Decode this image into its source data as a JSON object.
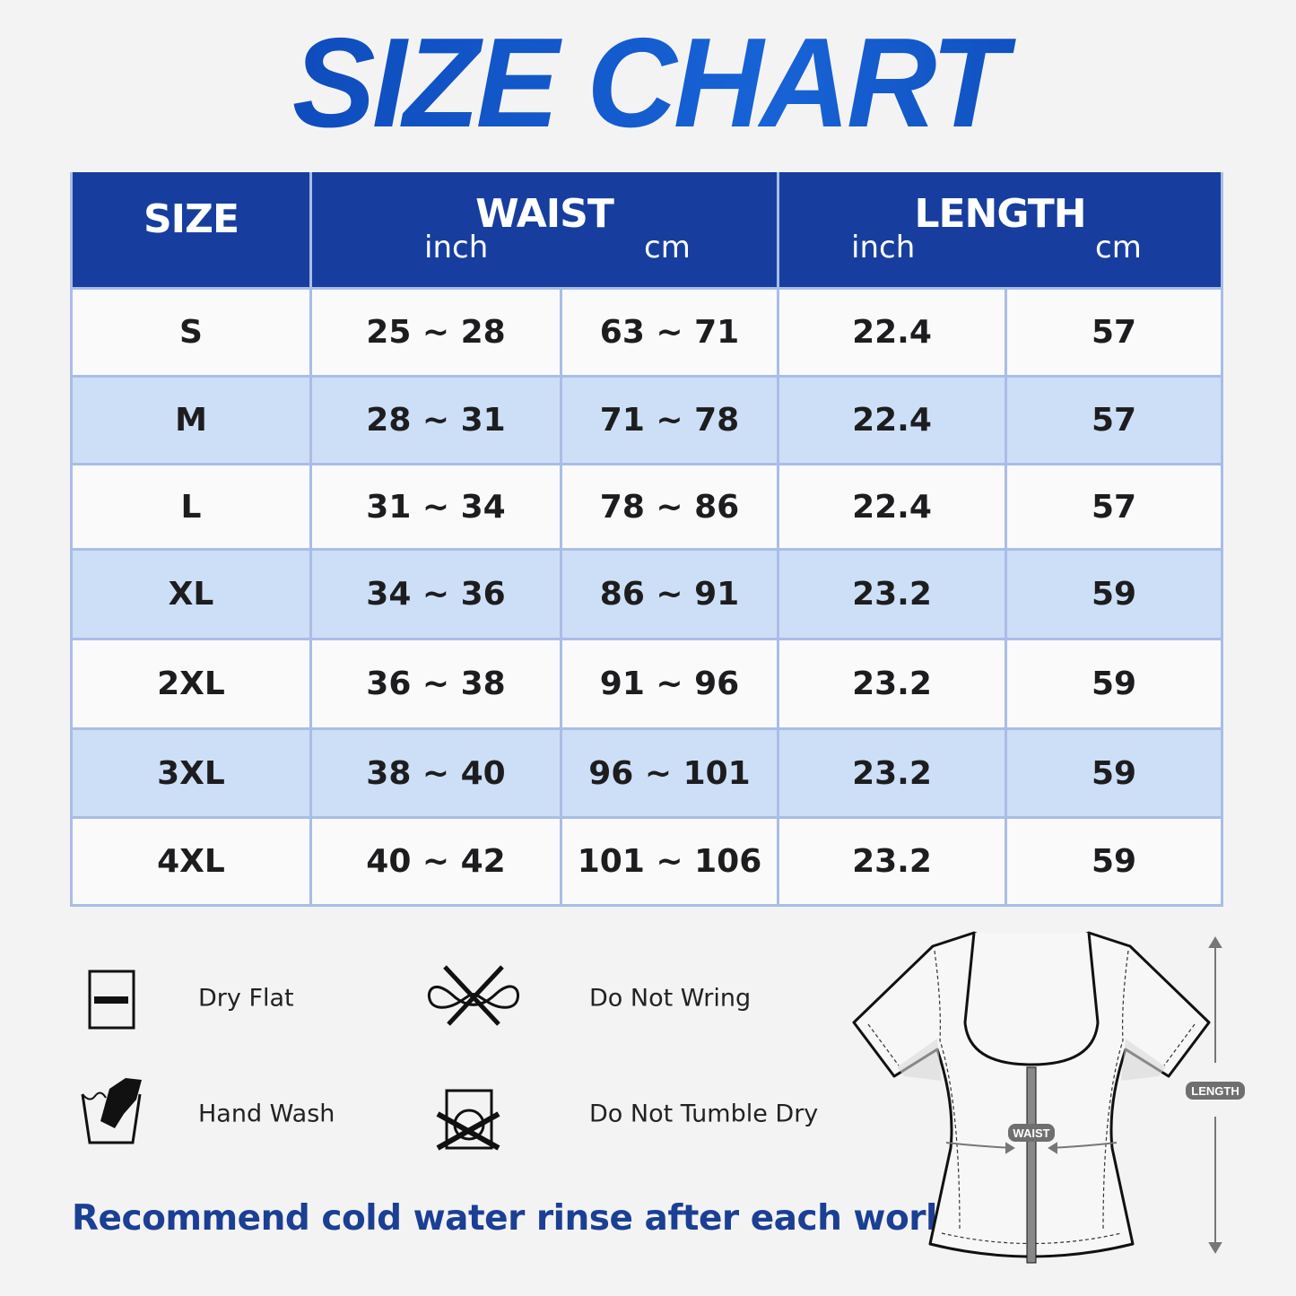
{
  "title": "SIZE CHART",
  "table": {
    "headers": {
      "size": "SIZE",
      "waist": "WAIST",
      "length": "LENGTH",
      "inch": "inch",
      "cm": "cm"
    },
    "rows": [
      {
        "size": "S",
        "waist_inch": "25 ~ 28",
        "waist_cm": "63 ~ 71",
        "length_inch": "22.4",
        "length_cm": "57"
      },
      {
        "size": "M",
        "waist_inch": "28 ~ 31",
        "waist_cm": "71 ~ 78",
        "length_inch": "22.4",
        "length_cm": "57"
      },
      {
        "size": "L",
        "waist_inch": "31 ~ 34",
        "waist_cm": "78 ~ 86",
        "length_inch": "22.4",
        "length_cm": "57"
      },
      {
        "size": "XL",
        "waist_inch": "34 ~ 36",
        "waist_cm": "86 ~ 91",
        "length_inch": "23.2",
        "length_cm": "59"
      },
      {
        "size": "2XL",
        "waist_inch": "36 ~ 38",
        "waist_cm": "91 ~ 96",
        "length_inch": "23.2",
        "length_cm": "59"
      },
      {
        "size": "3XL",
        "waist_inch": "38 ~ 40",
        "waist_cm": "96 ~ 101",
        "length_inch": "23.2",
        "length_cm": "59"
      },
      {
        "size": "4XL",
        "waist_inch": "40 ~ 42",
        "waist_cm": "101 ~ 106",
        "length_inch": "23.2",
        "length_cm": "59"
      }
    ]
  },
  "care": [
    {
      "icon": "dry-flat-icon",
      "label": "Dry Flat"
    },
    {
      "icon": "do-not-wring-icon",
      "label": "Do Not Wring"
    },
    {
      "icon": "hand-wash-icon",
      "label": "Hand Wash"
    },
    {
      "icon": "do-not-tumble-dry-icon",
      "label": "Do Not Tumble Dry"
    }
  ],
  "note": "Recommend cold water rinse after each workout.",
  "diagram": {
    "waist_label": "WAIST",
    "length_label": "LENGTH"
  },
  "colors": {
    "header": "#173e9f",
    "alt_row": "#cddff7",
    "note": "#1a3f94",
    "title": "#0d4dbd"
  }
}
